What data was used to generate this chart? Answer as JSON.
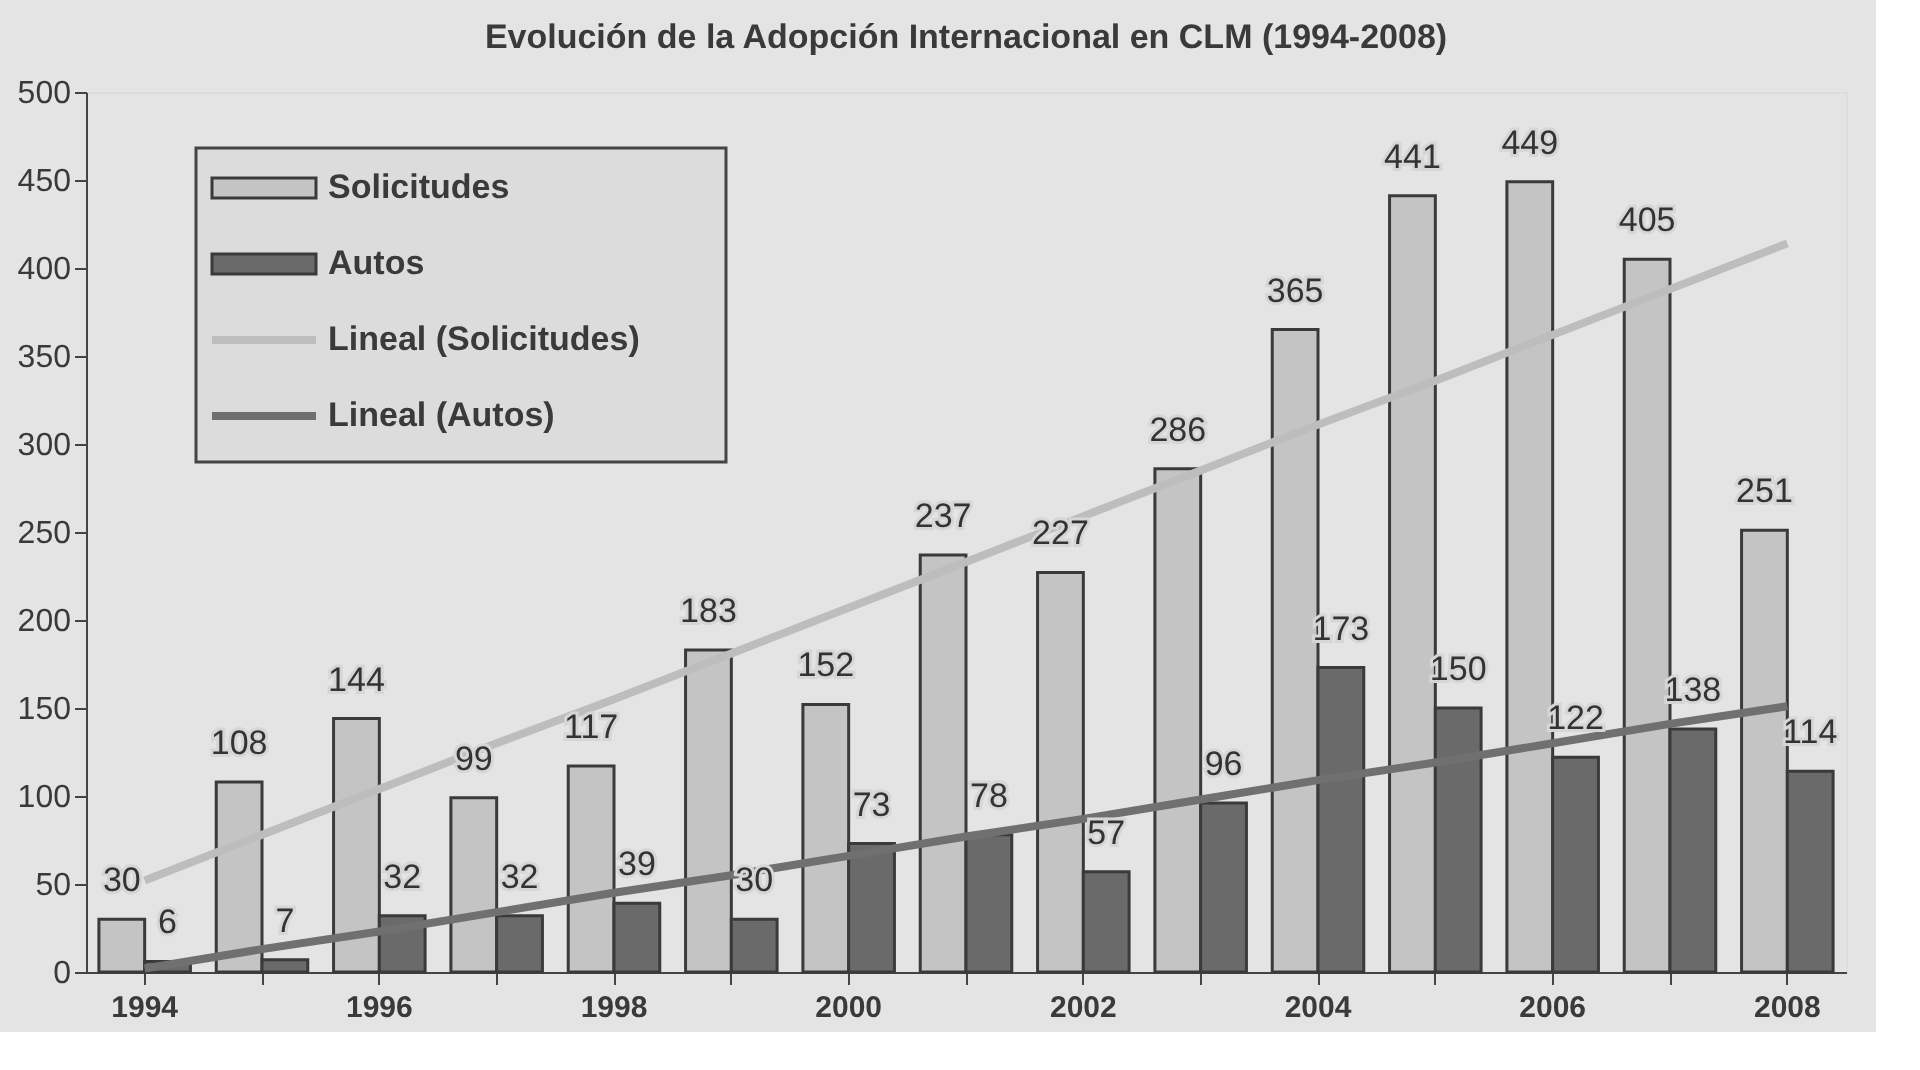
{
  "chart_data": {
    "type": "bar",
    "title": "Evolución de la Adopción Internacional en CLM (1994-2008)",
    "categories": [
      "1994",
      null,
      "1996",
      null,
      "1998",
      null,
      "2000",
      null,
      "2002",
      null,
      "2004",
      null,
      "2006",
      null,
      "2008"
    ],
    "series": [
      {
        "name": "Solicitudes",
        "color": "#c4c4c4",
        "values": [
          30,
          108,
          144,
          99,
          117,
          183,
          152,
          237,
          227,
          286,
          365,
          441,
          449,
          405,
          251
        ],
        "value_labels": [
          "30",
          "108",
          "144",
          "99",
          "117",
          "183",
          "152",
          "237",
          "227",
          "286",
          "365",
          "441",
          "449",
          "405",
          "251"
        ]
      },
      {
        "name": "Autos",
        "color": "#6a6a6a",
        "values": [
          6,
          7,
          32,
          32,
          39,
          30,
          73,
          78,
          57,
          96,
          173,
          150,
          122,
          138,
          114
        ],
        "value_labels": [
          "6",
          "7",
          "32",
          "32",
          "39",
          "30",
          "73",
          "78",
          "57",
          "96",
          "173",
          "150",
          "122",
          "138",
          "114"
        ]
      },
      {
        "name": "Lineal (Solicitudes)",
        "type": "line",
        "color": "#bdbdbd",
        "values": [
          52,
          78,
          104,
          130,
          155,
          181,
          207,
          233,
          259,
          285,
          311,
          336,
          362,
          388,
          414
        ]
      },
      {
        "name": "Lineal (Autos)",
        "type": "line",
        "color": "#707070",
        "values": [
          2,
          13,
          23,
          34,
          45,
          55,
          66,
          77,
          87,
          98,
          109,
          119,
          130,
          141,
          151
        ]
      }
    ],
    "ylim": [
      0,
      500
    ],
    "yticks": [
      0,
      50,
      100,
      150,
      200,
      250,
      300,
      350,
      400,
      450,
      500
    ],
    "grid": false,
    "legend": "top left"
  }
}
